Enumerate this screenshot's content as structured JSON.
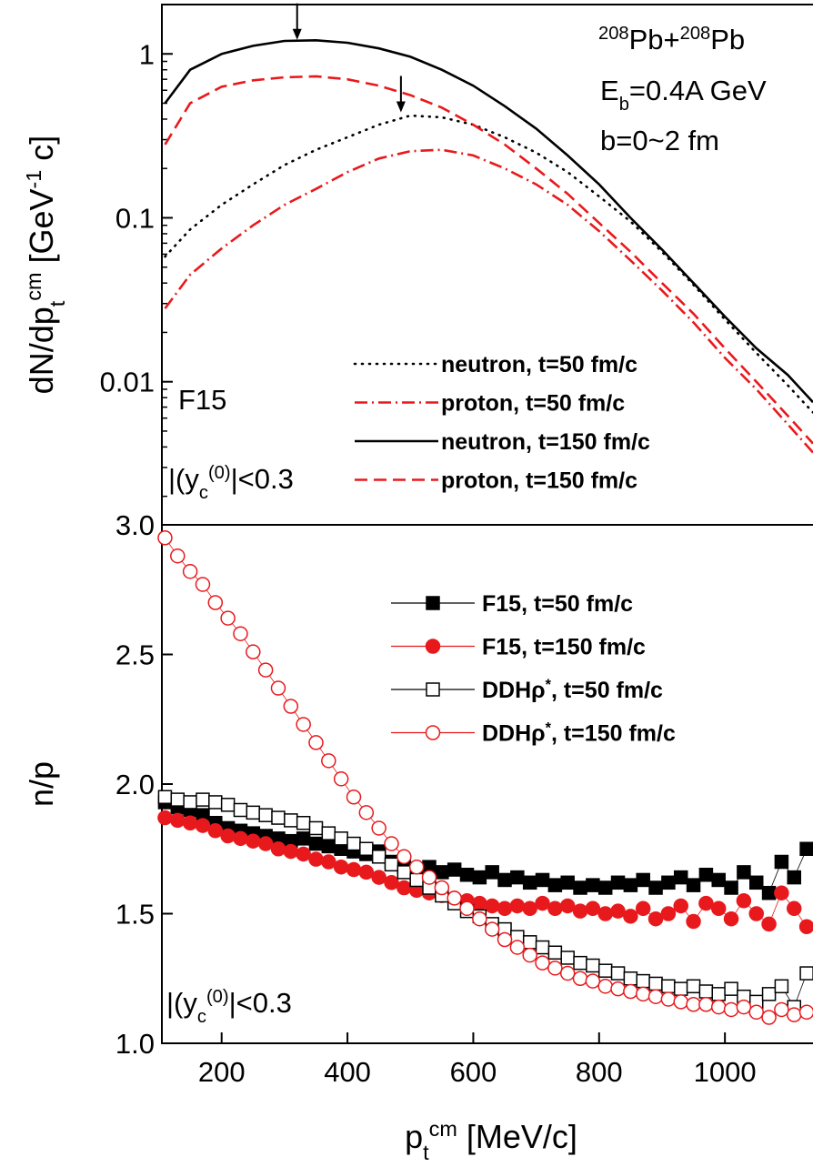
{
  "chart_data": [
    {
      "type": "line",
      "yscale": "log",
      "ylabel": [
        "dN/dp",
        {
          "text": "t",
          "pos": "sub"
        },
        {
          "text": "cm",
          "pos": "sup"
        },
        " [GeV",
        {
          "text": "-1",
          "pos": "sup"
        },
        " c]"
      ],
      "xlim": [
        105,
        1140
      ],
      "ylim": [
        0.00134,
        2.0
      ],
      "yticks": [
        0.01,
        0.1,
        1
      ],
      "x": [
        110,
        150,
        200,
        250,
        300,
        350,
        400,
        450,
        500,
        550,
        600,
        650,
        700,
        750,
        800,
        850,
        900,
        950,
        1000,
        1050,
        1100,
        1140
      ],
      "series": [
        {
          "name": [
            "neutron, t=50 fm/c"
          ],
          "color": "#000000",
          "dash": "dotted",
          "values": [
            0.058,
            0.085,
            0.12,
            0.16,
            0.21,
            0.26,
            0.31,
            0.37,
            0.42,
            0.41,
            0.37,
            0.31,
            0.25,
            0.19,
            0.135,
            0.095,
            0.062,
            0.039,
            0.024,
            0.015,
            0.0095,
            0.0065
          ]
        },
        {
          "name": [
            "proton, t=50 fm/c"
          ],
          "color": "#e8191c",
          "dash": "dashdot",
          "values": [
            0.028,
            0.045,
            0.065,
            0.09,
            0.12,
            0.15,
            0.19,
            0.23,
            0.255,
            0.26,
            0.24,
            0.2,
            0.16,
            0.12,
            0.083,
            0.055,
            0.036,
            0.023,
            0.014,
            0.009,
            0.0055,
            0.0037
          ]
        },
        {
          "name": [
            "neutron, t=150 fm/c"
          ],
          "color": "#000000",
          "dash": "solid",
          "values": [
            0.5,
            0.8,
            1.0,
            1.12,
            1.2,
            1.21,
            1.17,
            1.08,
            0.96,
            0.8,
            0.64,
            0.48,
            0.35,
            0.24,
            0.16,
            0.1,
            0.064,
            0.04,
            0.025,
            0.016,
            0.011,
            0.0075
          ]
        },
        {
          "name": [
            "proton, t=150 fm/c"
          ],
          "color": "#e8191c",
          "dash": "dashed",
          "values": [
            0.28,
            0.5,
            0.63,
            0.69,
            0.72,
            0.73,
            0.7,
            0.64,
            0.56,
            0.47,
            0.37,
            0.28,
            0.2,
            0.14,
            0.093,
            0.062,
            0.04,
            0.026,
            0.016,
            0.01,
            0.0062,
            0.0042
          ]
        }
      ],
      "arrows": [
        {
          "x": 320,
          "y": 1.22
        },
        {
          "x": 485,
          "y": 0.44
        }
      ],
      "annotations": [
        {
          "text": [
            {
              "text": "208",
              "pos": "sup"
            },
            "Pb+",
            {
              "text": "208",
              "pos": "sup"
            },
            "Pb"
          ]
        },
        {
          "text": [
            "E",
            {
              "text": "b",
              "pos": "sub"
            },
            "=0.4A GeV"
          ]
        },
        {
          "text": [
            "b=0~2 fm"
          ]
        },
        {
          "text": [
            "F15"
          ]
        },
        {
          "text": [
            "|(y",
            {
              "text": "c",
              "pos": "sub"
            },
            {
              "text": "(0)",
              "pos": "sup"
            },
            "|<0.3"
          ]
        }
      ]
    },
    {
      "type": "scatter",
      "ylabel": [
        "n/p"
      ],
      "xlabel": [
        "p",
        {
          "text": "t",
          "pos": "sub"
        },
        {
          "text": "cm",
          "pos": "sup"
        },
        " [MeV/c]"
      ],
      "xlim": [
        105,
        1140
      ],
      "ylim": [
        1,
        3
      ],
      "xticks": [
        200,
        400,
        600,
        800,
        1000
      ],
      "yticks": [
        {
          "value": 1,
          "label": "1.0"
        },
        1.5,
        {
          "value": 2,
          "label": "2.0"
        },
        2.5,
        {
          "value": 3,
          "label": "3.0"
        }
      ],
      "x": [
        110,
        130,
        150,
        170,
        190,
        210,
        230,
        250,
        270,
        290,
        310,
        330,
        350,
        370,
        390,
        410,
        430,
        450,
        470,
        490,
        510,
        530,
        550,
        570,
        590,
        610,
        630,
        650,
        670,
        690,
        710,
        730,
        750,
        770,
        790,
        810,
        830,
        850,
        870,
        890,
        910,
        930,
        950,
        970,
        990,
        1010,
        1030,
        1050,
        1070,
        1090,
        1110,
        1130
      ],
      "series": [
        {
          "name": [
            "F15, t=50 fm/c"
          ],
          "color": "#000000",
          "marker": "square",
          "filled": true,
          "values": [
            1.93,
            1.91,
            1.9,
            1.88,
            1.85,
            1.83,
            1.82,
            1.81,
            1.8,
            1.79,
            1.78,
            1.79,
            1.77,
            1.76,
            1.75,
            1.74,
            1.73,
            1.74,
            1.7,
            1.68,
            1.67,
            1.68,
            1.66,
            1.67,
            1.65,
            1.64,
            1.66,
            1.63,
            1.64,
            1.62,
            1.63,
            1.61,
            1.62,
            1.6,
            1.61,
            1.6,
            1.62,
            1.61,
            1.63,
            1.6,
            1.62,
            1.64,
            1.61,
            1.65,
            1.63,
            1.6,
            1.66,
            1.62,
            1.58,
            1.7,
            1.64,
            1.75
          ]
        },
        {
          "name": [
            "F15, t=150 fm/c"
          ],
          "color": "#e8191c",
          "marker": "circle",
          "filled": true,
          "values": [
            1.87,
            1.86,
            1.85,
            1.84,
            1.82,
            1.8,
            1.79,
            1.78,
            1.77,
            1.75,
            1.74,
            1.73,
            1.71,
            1.7,
            1.68,
            1.67,
            1.66,
            1.64,
            1.62,
            1.6,
            1.59,
            1.58,
            1.57,
            1.56,
            1.55,
            1.54,
            1.53,
            1.52,
            1.53,
            1.52,
            1.54,
            1.52,
            1.53,
            1.51,
            1.52,
            1.5,
            1.51,
            1.49,
            1.52,
            1.48,
            1.5,
            1.53,
            1.47,
            1.54,
            1.52,
            1.48,
            1.55,
            1.5,
            1.46,
            1.58,
            1.52,
            1.45
          ]
        },
        {
          "name": [
            "DDHρ",
            {
              "text": "*",
              "pos": "sup"
            },
            ", t=50 fm/c"
          ],
          "color": "#000000",
          "marker": "square",
          "filled": false,
          "values": [
            1.95,
            1.94,
            1.93,
            1.94,
            1.93,
            1.92,
            1.9,
            1.89,
            1.88,
            1.87,
            1.86,
            1.85,
            1.83,
            1.81,
            1.79,
            1.77,
            1.75,
            1.72,
            1.69,
            1.66,
            1.63,
            1.6,
            1.57,
            1.54,
            1.51,
            1.49,
            1.46,
            1.44,
            1.41,
            1.39,
            1.37,
            1.35,
            1.33,
            1.31,
            1.3,
            1.28,
            1.27,
            1.25,
            1.24,
            1.23,
            1.22,
            1.21,
            1.22,
            1.2,
            1.19,
            1.21,
            1.18,
            1.16,
            1.19,
            1.22,
            1.14,
            1.27
          ]
        },
        {
          "name": [
            "DDHρ",
            {
              "text": "*",
              "pos": "sup"
            },
            ", t=150 fm/c"
          ],
          "color": "#e8191c",
          "marker": "circle",
          "filled": false,
          "values": [
            2.95,
            2.88,
            2.82,
            2.77,
            2.7,
            2.64,
            2.58,
            2.51,
            2.44,
            2.37,
            2.3,
            2.23,
            2.16,
            2.09,
            2.02,
            1.95,
            1.89,
            1.83,
            1.77,
            1.72,
            1.68,
            1.64,
            1.6,
            1.56,
            1.52,
            1.48,
            1.44,
            1.4,
            1.37,
            1.34,
            1.31,
            1.29,
            1.27,
            1.25,
            1.24,
            1.22,
            1.21,
            1.2,
            1.19,
            1.18,
            1.17,
            1.16,
            1.15,
            1.15,
            1.14,
            1.13,
            1.14,
            1.12,
            1.1,
            1.13,
            1.11,
            1.12
          ]
        }
      ],
      "annotations": [
        {
          "text": [
            "|(y",
            {
              "text": "c",
              "pos": "sub"
            },
            {
              "text": "(0)",
              "pos": "sup"
            },
            "|<0.3"
          ]
        }
      ]
    }
  ]
}
